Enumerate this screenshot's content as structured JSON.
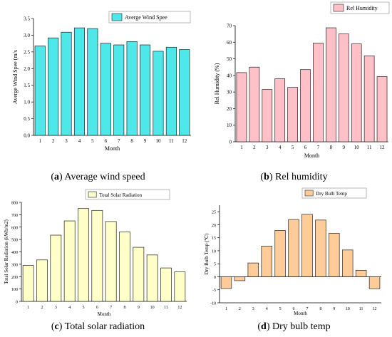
{
  "captions": [
    {
      "letter": "a",
      "text": "Average wind speed"
    },
    {
      "letter": "b",
      "text": "Rel humidity"
    },
    {
      "letter": "c",
      "text": "Total solar radiation"
    },
    {
      "letter": "d",
      "text": "Dry bulb temp"
    }
  ],
  "chart_data": [
    {
      "type": "bar",
      "categories": [
        "1",
        "2",
        "3",
        "4",
        "5",
        "6",
        "7",
        "8",
        "9",
        "10",
        "11",
        "12"
      ],
      "series": [
        {
          "name": "Averge Wind Spee",
          "values": [
            2.68,
            2.92,
            3.09,
            3.22,
            3.2,
            2.76,
            2.71,
            2.81,
            2.71,
            2.52,
            2.64,
            2.57
          ]
        }
      ],
      "xlabel": "Month",
      "ylabel": "Averge Wind Spee (m/s",
      "ylim": [
        0,
        3.5
      ],
      "yticks": [
        "0.0",
        "0.5",
        "1.0",
        "1.5",
        "2.0",
        "2.5",
        "3.0",
        "3.5"
      ],
      "ytick_values": [
        0,
        0.5,
        1.0,
        1.5,
        2.0,
        2.5,
        3.0,
        3.5
      ],
      "legend_position": "top-right",
      "color": "#4ee8ea",
      "grid": false
    },
    {
      "type": "bar",
      "categories": [
        "1",
        "2",
        "3",
        "4",
        "5",
        "6",
        "7",
        "8",
        "9",
        "10",
        "11",
        "12"
      ],
      "series": [
        {
          "name": "Rel Humidity",
          "values": [
            41.7,
            45.0,
            31.5,
            38.0,
            32.8,
            43.5,
            59.5,
            68.7,
            65.0,
            59.0,
            51.8,
            39.3
          ]
        }
      ],
      "xlabel": "Month",
      "ylabel": "Rel Humidity (%)",
      "ylim": [
        0,
        70
      ],
      "yticks": [
        "0",
        "10",
        "20",
        "30",
        "40",
        "50",
        "60",
        "70"
      ],
      "ytick_values": [
        0,
        10,
        20,
        30,
        40,
        50,
        60,
        70
      ],
      "legend_position": "top-right",
      "color": "#ffc0c8",
      "grid": false
    },
    {
      "type": "bar",
      "categories": [
        "1",
        "2",
        "3",
        "4",
        "5",
        "6",
        "7",
        "8",
        "9",
        "10",
        "11",
        "12"
      ],
      "series": [
        {
          "name": "Total Solar Radiation",
          "values": [
            290,
            335,
            535,
            650,
            750,
            735,
            645,
            560,
            437,
            375,
            270,
            238
          ]
        }
      ],
      "xlabel": "Month",
      "ylabel": "Total Solar Radiation (kWh/m2)",
      "ylim": [
        0,
        800
      ],
      "yticks": [
        "0",
        "100",
        "200",
        "300",
        "400",
        "500",
        "600",
        "700",
        "800"
      ],
      "ytick_values": [
        0,
        100,
        200,
        300,
        400,
        500,
        600,
        700,
        800
      ],
      "legend_position": "top-right",
      "color": "#ffffc8",
      "grid": false
    },
    {
      "type": "bar",
      "categories": [
        "1",
        "2",
        "3",
        "4",
        "5",
        "6",
        "7",
        "8",
        "9",
        "10",
        "11",
        "12"
      ],
      "series": [
        {
          "name": "Dry Bulb Temp",
          "values": [
            -4.5,
            -1.5,
            5.3,
            11.8,
            17.8,
            22.0,
            24.0,
            21.8,
            16.7,
            10.3,
            2.5,
            -4.6
          ]
        }
      ],
      "xlabel": "Month",
      "ylabel": "Dry Bulb Temp (℃)",
      "ylim": [
        -10,
        27.5
      ],
      "yticks": [
        "25",
        "20",
        "15",
        "10",
        "5",
        "0",
        "-5",
        "-10"
      ],
      "ytick_values": [
        25,
        20,
        15,
        10,
        5,
        0,
        -5,
        -10
      ],
      "legend_position": "top-right",
      "color": "#ffcc99",
      "grid": false
    }
  ]
}
